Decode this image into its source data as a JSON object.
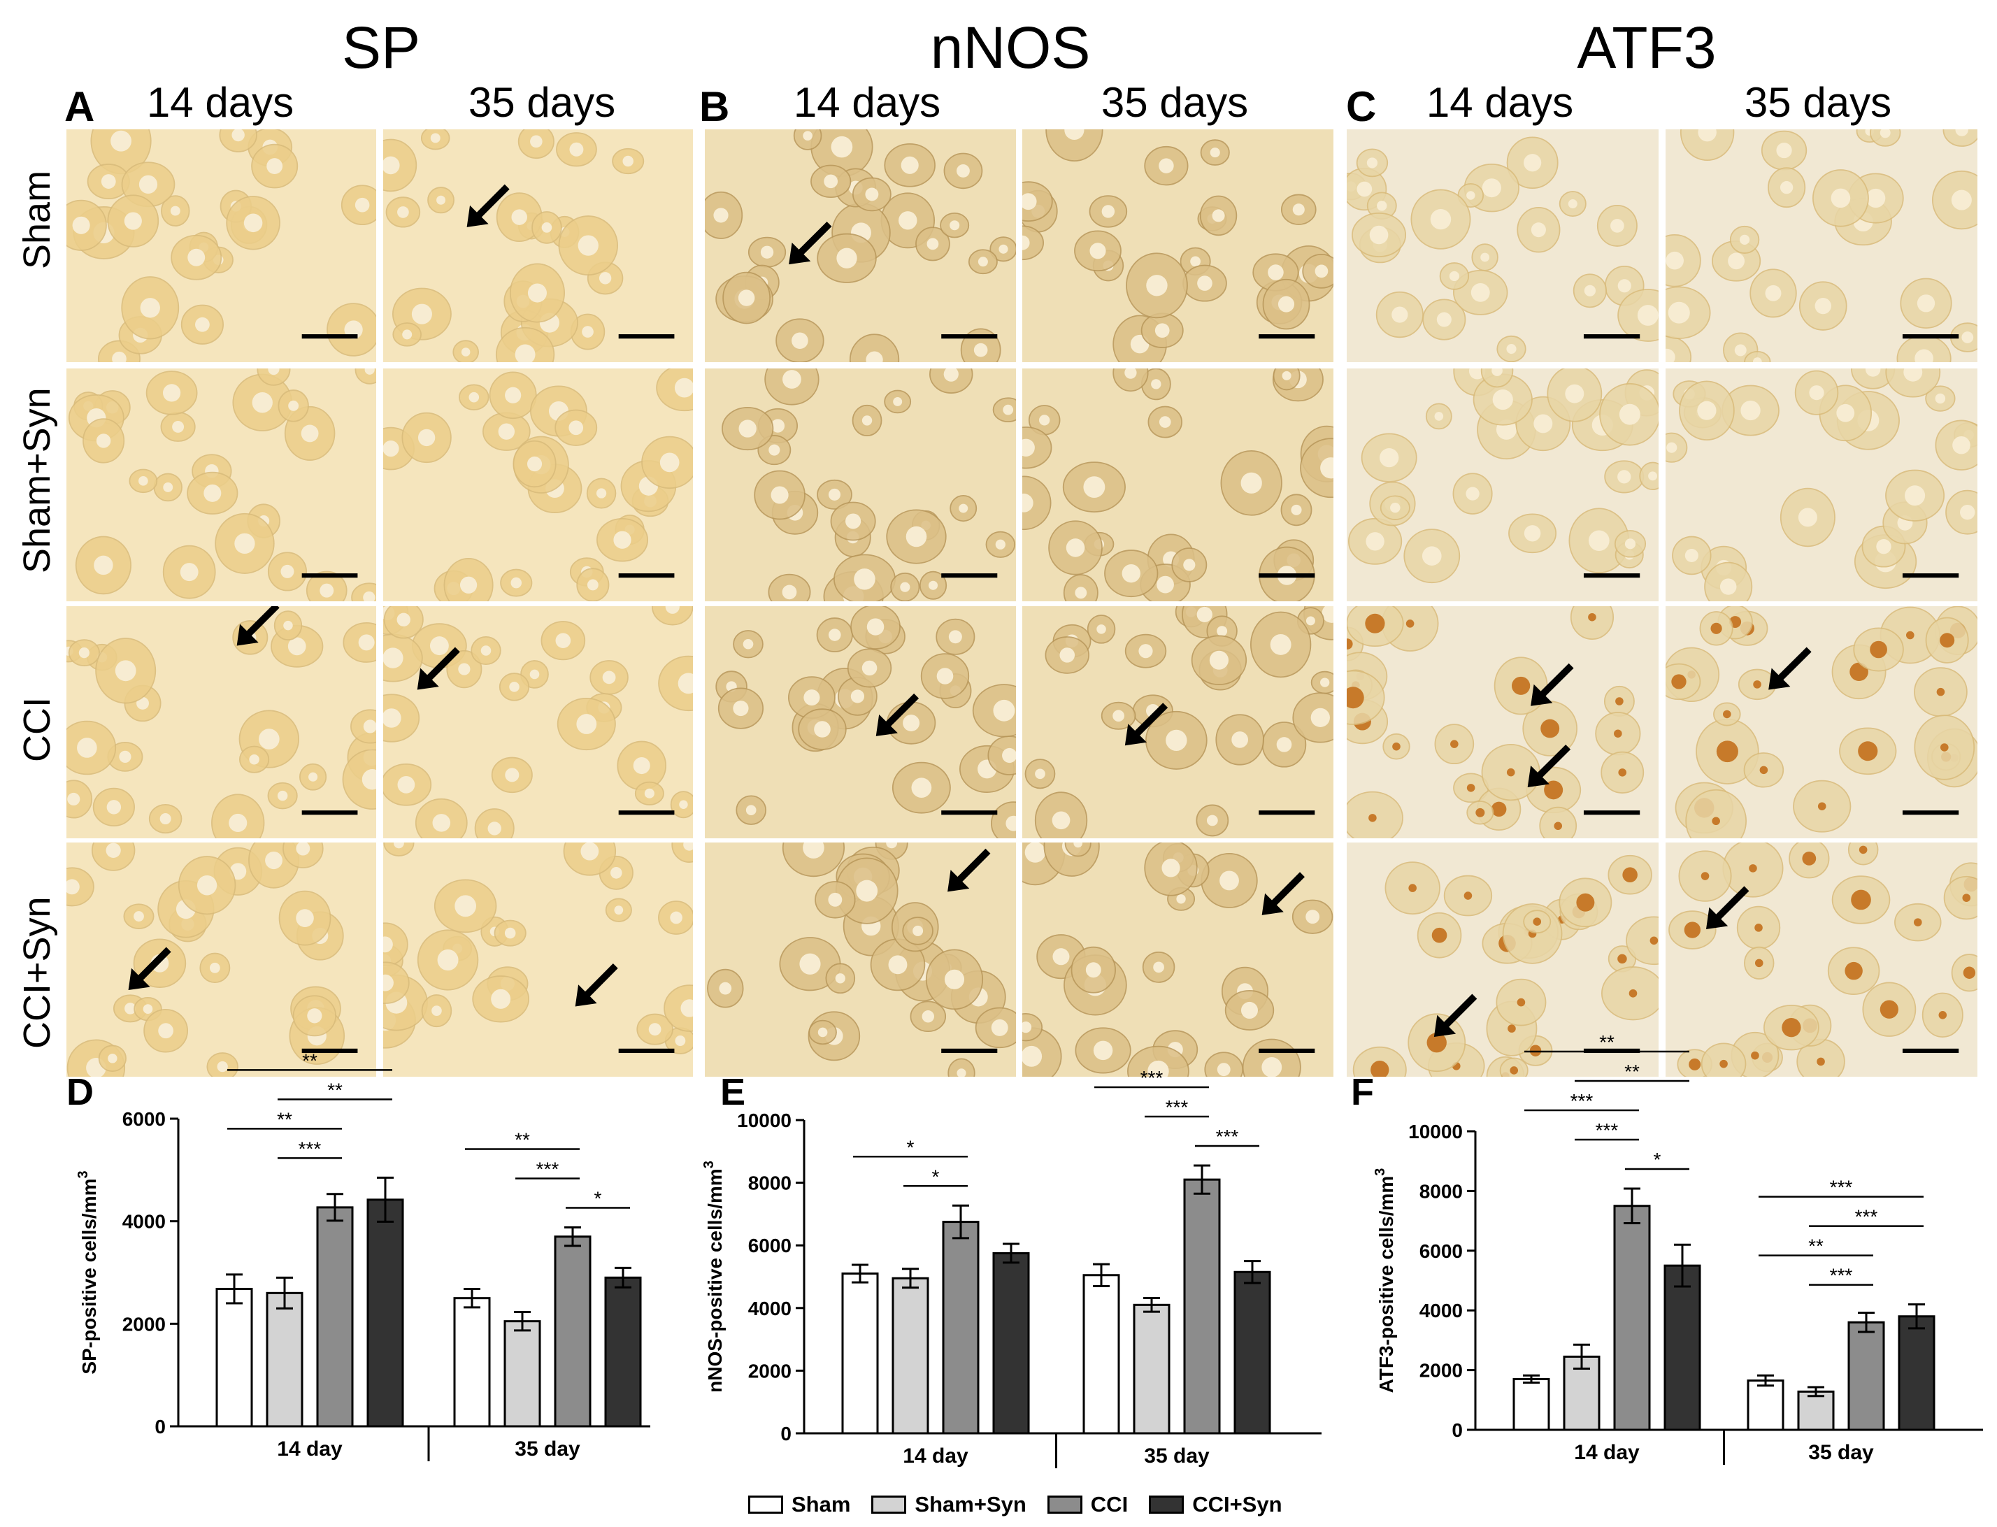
{
  "figure": {
    "columns": [
      {
        "letter": "A",
        "title": "SP",
        "day1": "14 days",
        "day2": "35 days"
      },
      {
        "letter": "B",
        "title": "nNOS",
        "day1": "14 days",
        "day2": "35 days"
      },
      {
        "letter": "C",
        "title": "ATF3",
        "day1": "14 days",
        "day2": "35 days"
      }
    ],
    "rows": [
      "Sham",
      "Sham+Syn",
      "CCI",
      "CCI+Syn"
    ]
  },
  "legend": [
    {
      "label": "Sham",
      "color": "#ffffff"
    },
    {
      "label": "Sham+Syn",
      "color": "#d3d3d3"
    },
    {
      "label": "CCI",
      "color": "#8c8c8c"
    },
    {
      "label": "CCI+Syn",
      "color": "#333333"
    }
  ],
  "chart_data": [
    {
      "panel": "D",
      "type": "bar",
      "ylabel": "SP-positive cells/mm",
      "ylabel_sup": "3",
      "ylim": [
        0,
        6000
      ],
      "yticks": [
        0,
        2000,
        4000,
        6000
      ],
      "categories": [
        "14 day",
        "35 day"
      ],
      "series": [
        {
          "name": "Sham",
          "values": [
            2680,
            2500
          ],
          "errors": [
            280,
            180
          ]
        },
        {
          "name": "Sham+Syn",
          "values": [
            2600,
            2050
          ],
          "errors": [
            300,
            180
          ]
        },
        {
          "name": "CCI",
          "values": [
            4270,
            3700
          ],
          "errors": [
            260,
            180
          ]
        },
        {
          "name": "CCI+Syn",
          "values": [
            4420,
            2900
          ],
          "errors": [
            430,
            190
          ]
        }
      ],
      "significance": [
        {
          "group": 0,
          "from": 0,
          "to": 3,
          "label": "**"
        },
        {
          "group": 0,
          "from": 1,
          "to": 3,
          "label": "**"
        },
        {
          "group": 0,
          "from": 0,
          "to": 2,
          "label": "**"
        },
        {
          "group": 0,
          "from": 1,
          "to": 2,
          "label": "***"
        },
        {
          "group": 1,
          "from": 0,
          "to": 2,
          "label": "**"
        },
        {
          "group": 1,
          "from": 1,
          "to": 2,
          "label": "***"
        },
        {
          "group": 1,
          "from": 2,
          "to": 3,
          "label": "*"
        }
      ]
    },
    {
      "panel": "E",
      "type": "bar",
      "ylabel": "nNOS-positive cells/mm",
      "ylabel_sup": "3",
      "ylim": [
        0,
        10000
      ],
      "yticks": [
        0,
        2000,
        4000,
        6000,
        8000,
        10000
      ],
      "categories": [
        "14 day",
        "35 day"
      ],
      "series": [
        {
          "name": "Sham",
          "values": [
            5100,
            5050
          ],
          "errors": [
            280,
            350
          ]
        },
        {
          "name": "Sham+Syn",
          "values": [
            4950,
            4100
          ],
          "errors": [
            300,
            220
          ]
        },
        {
          "name": "CCI",
          "values": [
            6750,
            8100
          ],
          "errors": [
            520,
            450
          ]
        },
        {
          "name": "CCI+Syn",
          "values": [
            5750,
            5150
          ],
          "errors": [
            300,
            350
          ]
        }
      ],
      "significance": [
        {
          "group": 0,
          "from": 0,
          "to": 2,
          "label": "*"
        },
        {
          "group": 0,
          "from": 1,
          "to": 2,
          "label": "*"
        },
        {
          "group": 1,
          "from": 0,
          "to": 2,
          "label": "***"
        },
        {
          "group": 1,
          "from": 1,
          "to": 2,
          "label": "***"
        },
        {
          "group": 1,
          "from": 2,
          "to": 3,
          "label": "***"
        }
      ]
    },
    {
      "panel": "F",
      "type": "bar",
      "ylabel": "ATF3-positive cells/mm",
      "ylabel_sup": "3",
      "ylim": [
        0,
        10000
      ],
      "yticks": [
        0,
        2000,
        4000,
        6000,
        8000,
        10000
      ],
      "categories": [
        "14 day",
        "35 day"
      ],
      "series": [
        {
          "name": "Sham",
          "values": [
            1700,
            1650
          ],
          "errors": [
            120,
            170
          ]
        },
        {
          "name": "Sham+Syn",
          "values": [
            2450,
            1280
          ],
          "errors": [
            400,
            150
          ]
        },
        {
          "name": "CCI",
          "values": [
            7500,
            3600
          ],
          "errors": [
            580,
            320
          ]
        },
        {
          "name": "CCI+Syn",
          "values": [
            5500,
            3800
          ],
          "errors": [
            700,
            400
          ]
        }
      ],
      "significance": [
        {
          "group": 0,
          "from": 0,
          "to": 3,
          "label": "**"
        },
        {
          "group": 0,
          "from": 1,
          "to": 3,
          "label": "**"
        },
        {
          "group": 0,
          "from": 0,
          "to": 2,
          "label": "***"
        },
        {
          "group": 0,
          "from": 1,
          "to": 2,
          "label": "***"
        },
        {
          "group": 0,
          "from": 2,
          "to": 3,
          "label": "*"
        },
        {
          "group": 1,
          "from": 0,
          "to": 3,
          "label": "***"
        },
        {
          "group": 1,
          "from": 1,
          "to": 3,
          "label": "***"
        },
        {
          "group": 1,
          "from": 0,
          "to": 2,
          "label": "**"
        },
        {
          "group": 1,
          "from": 1,
          "to": 2,
          "label": "***"
        }
      ]
    }
  ]
}
